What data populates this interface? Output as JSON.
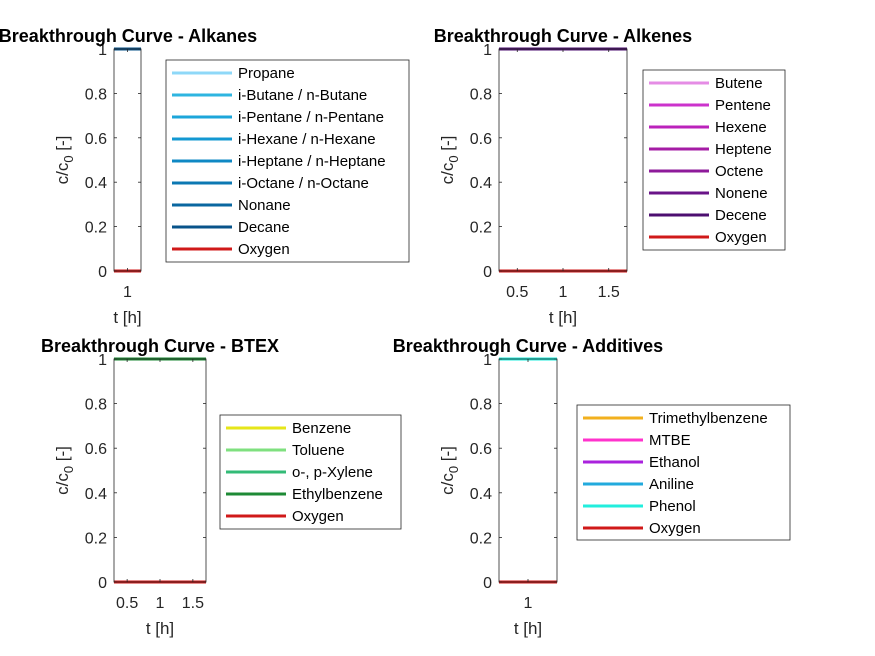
{
  "chart_data": [
    {
      "type": "line",
      "title": "Breakthrough Curve - Alkanes",
      "xlabel": "t [h]",
      "ylabel_main": "c/c",
      "ylabel_sub": "0",
      "ylabel_unit": " [-]",
      "ylim": [
        0,
        1
      ],
      "xlim": [
        0.95,
        1.05
      ],
      "yticks": [
        "0",
        "0.2",
        "0.4",
        "0.6",
        "0.8",
        "1"
      ],
      "ytick_values": [
        0,
        0.2,
        0.4,
        0.6,
        0.8,
        1
      ],
      "xticks": [
        "1"
      ],
      "xtick_values": [
        1
      ],
      "grid": false,
      "legend_position": "right",
      "series": [
        {
          "name": "Propane",
          "color": "#8ED8F8",
          "x": [
            0.95,
            1.05
          ],
          "y": [
            1,
            1
          ]
        },
        {
          "name": "i-Butane / n-Butane",
          "color": "#2FB5E0",
          "x": [
            0.95,
            1.05
          ],
          "y": [
            1,
            1
          ]
        },
        {
          "name": "i-Pentane / n-Pentane",
          "color": "#1CA6DA",
          "x": [
            0.95,
            1.05
          ],
          "y": [
            1,
            1
          ]
        },
        {
          "name": "i-Hexane / n-Hexane",
          "color": "#1398D2",
          "x": [
            0.95,
            1.05
          ],
          "y": [
            1,
            1
          ]
        },
        {
          "name": "i-Heptane / n-Heptane",
          "color": "#0F88C4",
          "x": [
            0.95,
            1.05
          ],
          "y": [
            1,
            1
          ]
        },
        {
          "name": "i-Octane / n-Octane",
          "color": "#0C78B3",
          "x": [
            0.95,
            1.05
          ],
          "y": [
            1,
            1
          ]
        },
        {
          "name": "Nonane",
          "color": "#0A67A0",
          "x": [
            0.95,
            1.05
          ],
          "y": [
            1,
            1
          ]
        },
        {
          "name": "Decane",
          "color": "#08538A",
          "x": [
            0.95,
            1.05
          ],
          "y": [
            1,
            1
          ]
        },
        {
          "name": "Oxygen",
          "color": "#D01919",
          "x": [
            0.95,
            1.05
          ],
          "y": [
            0,
            0
          ]
        }
      ]
    },
    {
      "type": "line",
      "title": "Breakthrough Curve - Alkenes",
      "xlabel": "t [h]",
      "ylabel_main": "c/c",
      "ylabel_sub": "0",
      "ylabel_unit": " [-]",
      "ylim": [
        0,
        1
      ],
      "xlim": [
        0.3,
        1.7
      ],
      "yticks": [
        "0",
        "0.2",
        "0.4",
        "0.6",
        "0.8",
        "1"
      ],
      "ytick_values": [
        0,
        0.2,
        0.4,
        0.6,
        0.8,
        1
      ],
      "xticks": [
        "0.5",
        "1",
        "1.5"
      ],
      "xtick_values": [
        0.5,
        1,
        1.5
      ],
      "grid": false,
      "legend_position": "right",
      "series": [
        {
          "name": "Butene",
          "color": "#E58CE5",
          "x": [
            0.3,
            1.7
          ],
          "y": [
            1,
            1
          ]
        },
        {
          "name": "Pentene",
          "color": "#CC33CC",
          "x": [
            0.3,
            1.7
          ],
          "y": [
            1,
            1
          ]
        },
        {
          "name": "Hexene",
          "color": "#BB22BB",
          "x": [
            0.3,
            1.7
          ],
          "y": [
            1,
            1
          ]
        },
        {
          "name": "Heptene",
          "color": "#A51CA5",
          "x": [
            0.3,
            1.7
          ],
          "y": [
            1,
            1
          ]
        },
        {
          "name": "Octene",
          "color": "#8E1A9A",
          "x": [
            0.3,
            1.7
          ],
          "y": [
            1,
            1
          ]
        },
        {
          "name": "Nonene",
          "color": "#6A1488",
          "x": [
            0.3,
            1.7
          ],
          "y": [
            1,
            1
          ]
        },
        {
          "name": "Decene",
          "color": "#4D0F70",
          "x": [
            0.3,
            1.7
          ],
          "y": [
            1,
            1
          ]
        },
        {
          "name": "Oxygen",
          "color": "#D01919",
          "x": [
            0.3,
            1.7
          ],
          "y": [
            0,
            0
          ]
        }
      ]
    },
    {
      "type": "line",
      "title": "Breakthrough Curve - BTEX",
      "xlabel": "t [h]",
      "ylabel_main": "c/c",
      "ylabel_sub": "0",
      "ylabel_unit": " [-]",
      "ylim": [
        0,
        1
      ],
      "xlim": [
        0.3,
        1.7
      ],
      "yticks": [
        "0",
        "0.2",
        "0.4",
        "0.6",
        "0.8",
        "1"
      ],
      "ytick_values": [
        0,
        0.2,
        0.4,
        0.6,
        0.8,
        1
      ],
      "xticks": [
        "0.5",
        "1",
        "1.5"
      ],
      "xtick_values": [
        0.5,
        1,
        1.5
      ],
      "grid": false,
      "legend_position": "right",
      "series": [
        {
          "name": "Benzene",
          "color": "#E6E619",
          "x": [
            0.3,
            1.7
          ],
          "y": [
            1,
            1
          ]
        },
        {
          "name": "Toluene",
          "color": "#7FE07F",
          "x": [
            0.3,
            1.7
          ],
          "y": [
            1,
            1
          ]
        },
        {
          "name": "o-, p-Xylene",
          "color": "#33BB77",
          "x": [
            0.3,
            1.7
          ],
          "y": [
            1,
            1
          ]
        },
        {
          "name": "Ethylbenzene",
          "color": "#1E8A35",
          "x": [
            0.3,
            1.7
          ],
          "y": [
            1,
            1
          ]
        },
        {
          "name": "Oxygen",
          "color": "#D01919",
          "x": [
            0.3,
            1.7
          ],
          "y": [
            0,
            0
          ]
        }
      ]
    },
    {
      "type": "line",
      "title": "Breakthrough Curve - Additives",
      "xlabel": "t [h]",
      "ylabel_main": "c/c",
      "ylabel_sub": "0",
      "ylabel_unit": " [-]",
      "ylim": [
        0,
        1
      ],
      "xlim": [
        0.95,
        1.05
      ],
      "yticks": [
        "0",
        "0.2",
        "0.4",
        "0.6",
        "0.8",
        "1"
      ],
      "ytick_values": [
        0,
        0.2,
        0.4,
        0.6,
        0.8,
        1
      ],
      "xticks": [
        "1"
      ],
      "xtick_values": [
        1
      ],
      "grid": false,
      "legend_position": "right",
      "series": [
        {
          "name": "Trimethylbenzene",
          "color": "#F2B01E",
          "x": [
            0.95,
            1.05
          ],
          "y": [
            1,
            1
          ]
        },
        {
          "name": "MTBE",
          "color": "#FF33CC",
          "x": [
            0.95,
            1.05
          ],
          "y": [
            1,
            1
          ]
        },
        {
          "name": "Ethanol",
          "color": "#AA22DD",
          "x": [
            0.95,
            1.05
          ],
          "y": [
            1,
            1
          ]
        },
        {
          "name": "Aniline",
          "color": "#22AADD",
          "x": [
            0.95,
            1.05
          ],
          "y": [
            1,
            1
          ]
        },
        {
          "name": "Phenol",
          "color": "#22EEDD",
          "x": [
            0.95,
            1.05
          ],
          "y": [
            1,
            1
          ]
        },
        {
          "name": "Oxygen",
          "color": "#D01919",
          "x": [
            0.95,
            1.05
          ],
          "y": [
            0,
            0
          ]
        }
      ]
    }
  ]
}
